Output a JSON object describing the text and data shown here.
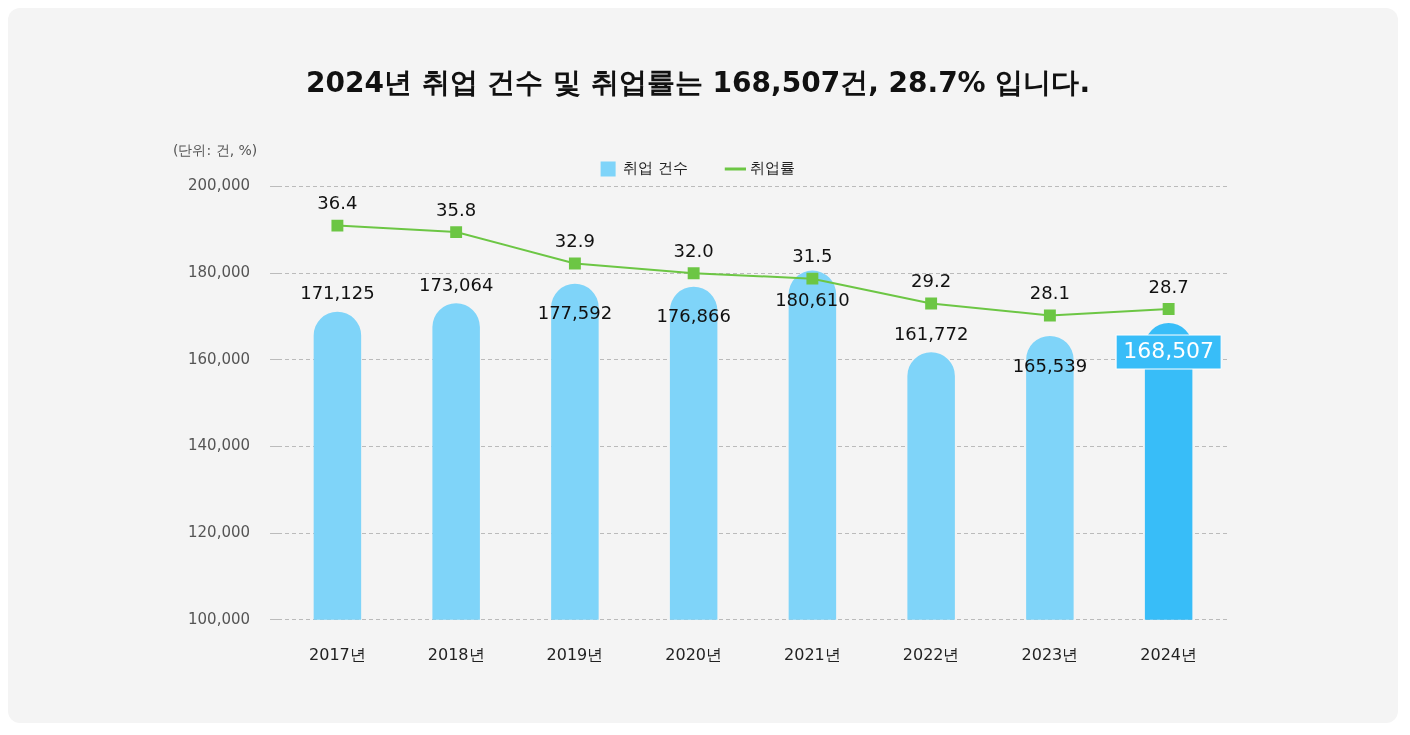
{
  "chart_data": {
    "type": "bar",
    "title": "2024년 취업 건수 및 취업률는 168,507건, 28.7% 입니다.",
    "annotations": [
      "(단위: 건, %)"
    ],
    "categories": [
      "2017년",
      "2018년",
      "2019년",
      "2020년",
      "2021년",
      "2022년",
      "2023년",
      "2024년"
    ],
    "series": [
      {
        "name": "취업 건수",
        "color": "#7fd4f9",
        "colors": [
          "#7fd4f9",
          "#7fd4f9",
          "#7fd4f9",
          "#7fd4f9",
          "#7fd4f9",
          "#7fd4f9",
          "#7fd4f9",
          "#38bdf8"
        ],
        "values": [
          171125,
          173064,
          177592,
          176866,
          180610,
          161772,
          165539,
          168507
        ],
        "value_labels": [
          "171,125",
          "173,064",
          "177,592",
          "176,866",
          "180,610",
          "161,772",
          "165,539",
          "168,507"
        ]
      },
      {
        "name": "취업률",
        "type": "line",
        "axis": "y2",
        "color": "#6cc644",
        "marker": "square",
        "values": [
          36.4,
          35.8,
          32.9,
          32.0,
          31.5,
          29.2,
          28.1,
          28.7
        ],
        "value_labels": [
          "36.4",
          "35.8",
          "32.9",
          "32.0",
          "31.5",
          "29.2",
          "28.1",
          "28.7"
        ]
      }
    ],
    "ylim": [
      100000,
      200000
    ],
    "yticks": [
      {
        "value": 100000,
        "label": "100,000"
      },
      {
        "value": 120000,
        "label": "120,000"
      },
      {
        "value": 140000,
        "label": "140,000"
      },
      {
        "value": 160000,
        "label": "160,000"
      },
      {
        "value": 180000,
        "label": "180,000"
      },
      {
        "value": 200000,
        "label": "200,000"
      }
    ],
    "y2lim": [
      0,
      40
    ],
    "grid": "y",
    "legend": "top",
    "data_labels": true
  }
}
